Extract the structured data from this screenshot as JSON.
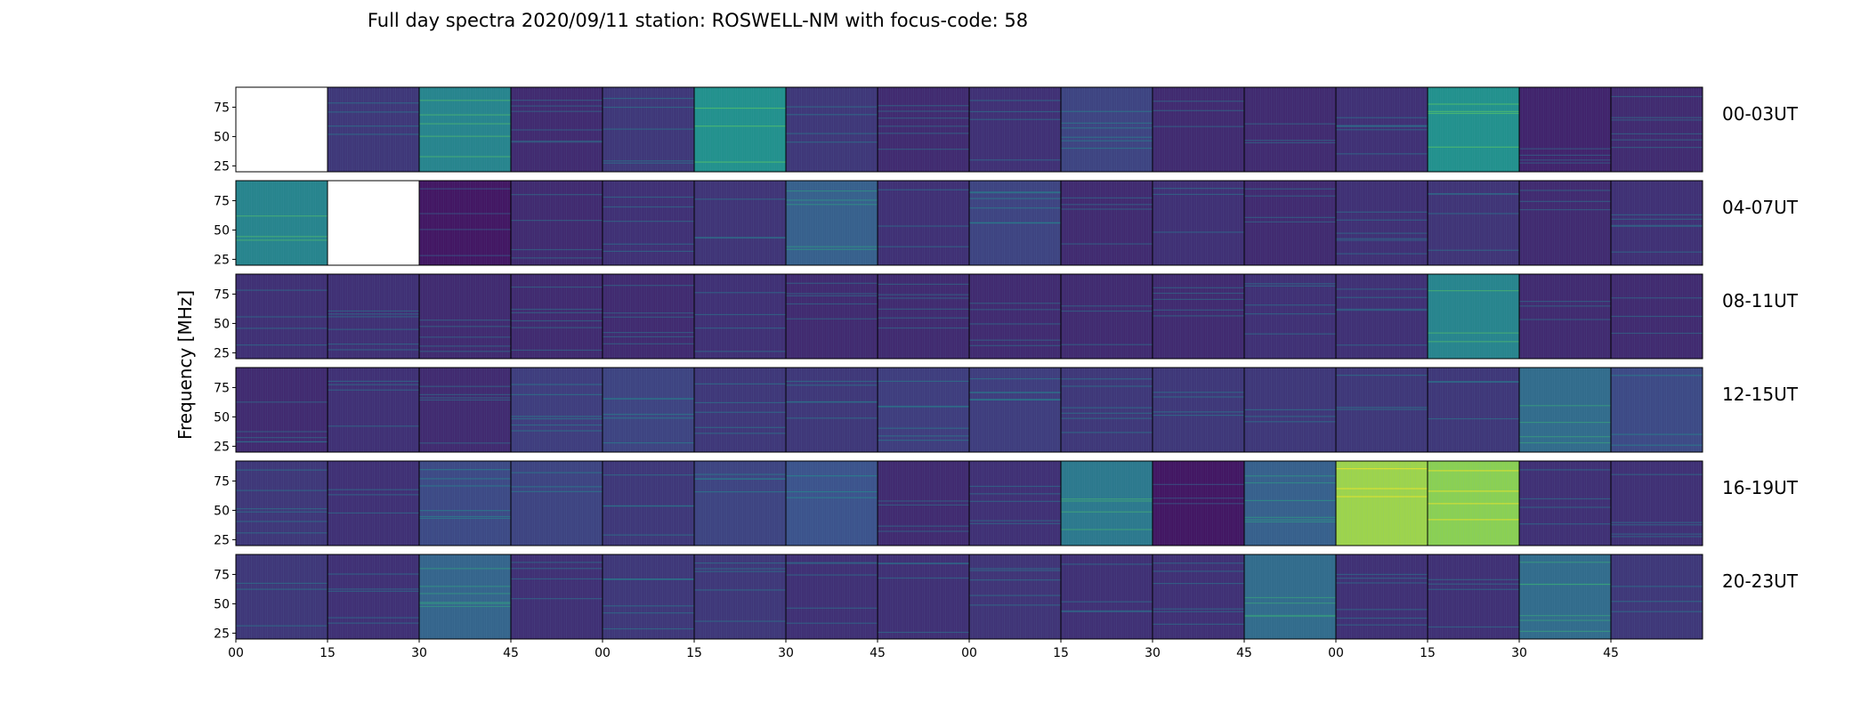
{
  "chart_data": {
    "type": "heatmap",
    "title": "Full day spectra 2020/09/11 station: ROSWELL-NM with focus-code: 58",
    "ylabel": "Frequency [MHz]",
    "xlabel": "",
    "ylim": [
      20,
      92
    ],
    "yticks": [
      25,
      50,
      75
    ],
    "xticks": [
      "00",
      "15",
      "30",
      "45",
      "00",
      "15",
      "30",
      "45",
      "00",
      "15",
      "30",
      "45",
      "00",
      "15",
      "30",
      "45"
    ],
    "colormap": [
      "#440154",
      "#3b528b",
      "#21918c",
      "#5ec962",
      "#fde725"
    ],
    "rows": [
      {
        "label": "00-03UT",
        "levels": [
          null,
          0.16,
          0.45,
          0.12,
          0.16,
          0.5,
          0.16,
          0.12,
          0.14,
          0.2,
          0.12,
          0.12,
          0.14,
          0.5,
          0.1,
          0.12
        ]
      },
      {
        "label": "04-07UT",
        "levels": [
          0.45,
          null,
          0.06,
          0.12,
          0.14,
          0.15,
          0.3,
          0.14,
          0.2,
          0.12,
          0.14,
          0.12,
          0.14,
          0.15,
          0.12,
          0.14
        ]
      },
      {
        "label": "08-11UT",
        "levels": [
          0.14,
          0.14,
          0.12,
          0.12,
          0.12,
          0.14,
          0.12,
          0.12,
          0.12,
          0.12,
          0.12,
          0.14,
          0.14,
          0.45,
          0.12,
          0.12
        ]
      },
      {
        "label": "12-15UT",
        "levels": [
          0.12,
          0.14,
          0.12,
          0.18,
          0.2,
          0.16,
          0.16,
          0.18,
          0.18,
          0.16,
          0.16,
          0.16,
          0.16,
          0.16,
          0.35,
          0.22
        ]
      },
      {
        "label": "16-19UT",
        "levels": [
          0.16,
          0.14,
          0.22,
          0.2,
          0.16,
          0.2,
          0.25,
          0.12,
          0.14,
          0.4,
          0.06,
          0.3,
          0.85,
          0.82,
          0.14,
          0.14
        ]
      },
      {
        "label": "20-23UT",
        "levels": [
          0.16,
          0.14,
          0.32,
          0.14,
          0.16,
          0.16,
          0.14,
          0.14,
          0.15,
          0.14,
          0.14,
          0.35,
          0.14,
          0.14,
          0.35,
          0.16
        ]
      }
    ]
  }
}
